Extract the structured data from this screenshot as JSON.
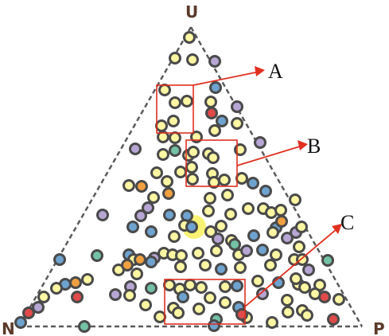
{
  "vertices": {
    "top": "U",
    "left": "N",
    "right": "P"
  },
  "callouts": [
    "A",
    "B",
    "C"
  ],
  "colors": {
    "yellow": "#fdf6a3",
    "purple": "#b7a6d4",
    "blue": "#6fa3cf",
    "orange": "#f0a040",
    "teal": "#73c2a5",
    "red": "#e04a4a",
    "highlight": "#f6f05a",
    "box": "#e03020"
  }
}
